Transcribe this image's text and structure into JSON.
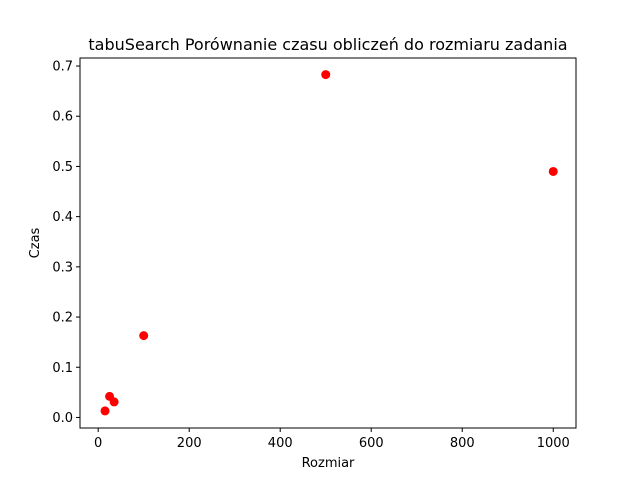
{
  "chart_data": {
    "type": "scatter",
    "title": "tabuSearch Porównanie czasu obliczeń do rozmiaru zadania",
    "xlabel": "Rozmiar",
    "ylabel": "Czas",
    "xlim": [
      -40,
      1050
    ],
    "ylim": [
      -0.021,
      0.716
    ],
    "xticks": [
      0,
      200,
      400,
      600,
      800,
      1000
    ],
    "yticks": [
      0.0,
      0.1,
      0.2,
      0.3,
      0.4,
      0.5,
      0.6,
      0.7
    ],
    "grid": false,
    "marker_color": "#ff0000",
    "series": [
      {
        "x": [
          15,
          25,
          35,
          100,
          500,
          1000
        ],
        "y": [
          0.013,
          0.042,
          0.031,
          0.163,
          0.683,
          0.49
        ]
      }
    ]
  }
}
